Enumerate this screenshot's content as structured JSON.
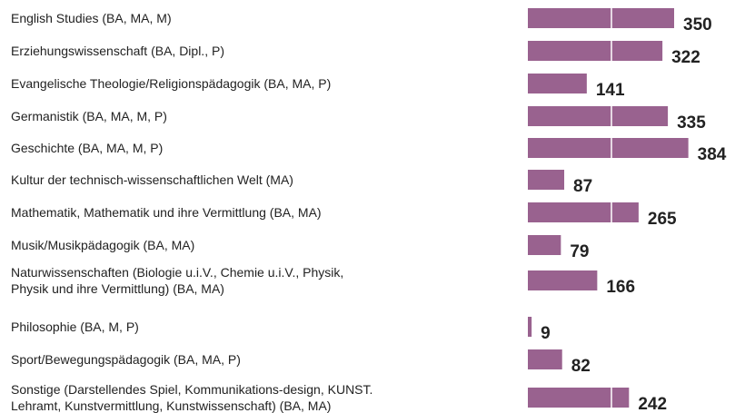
{
  "chart_data": {
    "type": "bar",
    "orientation": "horizontal",
    "categories": [
      "English Studies (BA, MA, M)",
      "Erziehungswissenschaft (BA, Dipl., P)",
      "Evangelische Theologie/Religionspädagogik (BA, MA, P)",
      "Germanistik (BA, MA, M, P)",
      "Geschichte (BA, MA, M, P)",
      "Kultur der technisch-wissenschaftlichen Welt (MA)",
      "Mathematik, Mathematik und ihre Vermittlung (BA, MA)",
      "Musik/Musikpädagogik (BA, MA)",
      "Naturwissenschaften (Biologie u.i.V., Chemie u.i.V., Physik,\nPhysik und ihre Vermittlung) (BA, MA)",
      "Philosophie (BA, M, P)",
      "Sport/Bewegungspädagogik (BA, MA, P)",
      "Sonstige (Darstellendes Spiel, Kommunikations-design, KUNST.\nLehramt, Kunstvermittlung, Kunstwissenschaft) (BA, MA)"
    ],
    "values": [
      350,
      322,
      141,
      335,
      384,
      87,
      265,
      79,
      166,
      9,
      82,
      242
    ],
    "color": "#99628f",
    "xlim": [
      0,
      400
    ],
    "xticks": [
      200
    ],
    "grid": true
  }
}
